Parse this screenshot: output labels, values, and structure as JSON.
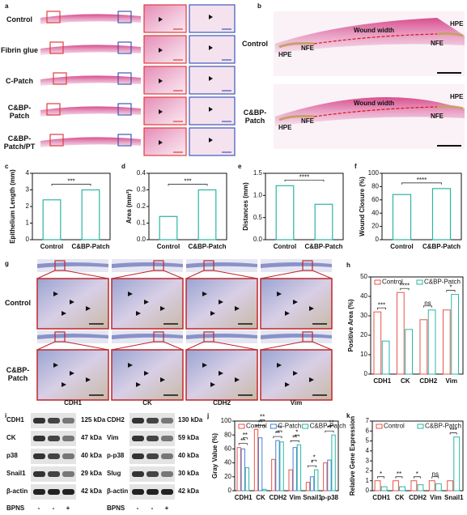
{
  "panels": {
    "a": {
      "label": "a",
      "rows": [
        "Control",
        "Fibrin glue",
        "C-Patch",
        "C&BP-Patch",
        "C&BP-Patch/PT"
      ]
    },
    "b": {
      "label": "b",
      "rows": [
        "Control",
        "C&BP-Patch"
      ],
      "annotations": [
        "HPE",
        "NFE",
        "Wound width"
      ]
    },
    "g": {
      "label": "g",
      "rows": [
        "Control",
        "C&BP-Patch"
      ],
      "columns": [
        "CDH1",
        "CK",
        "CDH2",
        "Vim"
      ]
    },
    "i": {
      "label": "i",
      "left": [
        {
          "protein": "CDH1",
          "size": "125 kDa"
        },
        {
          "protein": "CK",
          "size": "47 kDa"
        },
        {
          "protein": "p38",
          "size": "40 kDa"
        },
        {
          "protein": "Snail1",
          "size": "29 kDa"
        },
        {
          "protein": "β-actin",
          "size": "42 kDa"
        }
      ],
      "right": [
        {
          "protein": "CDH2",
          "size": "130 kDa"
        },
        {
          "protein": "Vim",
          "size": "59 kDa"
        },
        {
          "protein": "p-p38",
          "size": "40 kDa"
        },
        {
          "protein": "Slug",
          "size": "30 kDa"
        },
        {
          "protein": "β-actin",
          "size": "42 kDa"
        }
      ],
      "treatment_label": "BPNS",
      "treatment": [
        "-",
        "-",
        "+"
      ]
    }
  },
  "chart_data": [
    {
      "type": "bar",
      "panel_label": "c",
      "ylabel": "Epithelium Length (mm)",
      "categories": [
        "Control",
        "C&BP-Patch"
      ],
      "values": [
        2.4,
        3.0
      ],
      "color": "#2bb5a3",
      "ylim": [
        0,
        4
      ],
      "yticks": [
        0,
        1,
        2,
        3,
        4
      ],
      "significance": [
        "***"
      ]
    },
    {
      "type": "bar",
      "panel_label": "d",
      "ylabel": "Area (mm²)",
      "categories": [
        "Control",
        "C&BP-Patch"
      ],
      "values": [
        0.14,
        0.3
      ],
      "color": "#2bb5a3",
      "ylim": [
        0,
        0.4
      ],
      "yticks": [
        {
          "value": 0,
          "label": "0.0"
        },
        0.1,
        0.2,
        0.3,
        0.4
      ],
      "significance": [
        "***"
      ]
    },
    {
      "type": "bar",
      "panel_label": "e",
      "ylabel": "Distances (mm)",
      "categories": [
        "Control",
        "C&BP-Patch"
      ],
      "values": [
        1.22,
        0.8
      ],
      "color": "#2bb5a3",
      "ylim": [
        0,
        1.5
      ],
      "yticks": [
        {
          "value": 0,
          "label": "0.0"
        },
        0.5,
        {
          "value": 1,
          "label": "1.0"
        },
        1.5
      ],
      "significance": [
        "****"
      ]
    },
    {
      "type": "bar",
      "panel_label": "f",
      "ylabel": "Wound Closure (%)",
      "categories": [
        "Control",
        "C&BP-Patch"
      ],
      "values": [
        68,
        77
      ],
      "color": "#2bb5a3",
      "ylim": [
        0,
        100
      ],
      "yticks": [
        0,
        20,
        40,
        60,
        80,
        100
      ],
      "significance": [
        "****"
      ]
    },
    {
      "type": "bar",
      "panel_label": "h",
      "ylabel": "Positive Area (%)",
      "categories": [
        "CDH1",
        "CK",
        "CDH2",
        "Vim"
      ],
      "series": [
        {
          "name": "Control",
          "color": "#e8534a",
          "values": [
            32,
            42,
            28,
            33
          ]
        },
        {
          "name": "C&BP-Patch",
          "color": "#2bb5a3",
          "values": [
            17,
            23,
            33,
            41
          ]
        }
      ],
      "ylim": [
        0,
        50
      ],
      "yticks": [
        0,
        10,
        20,
        30,
        40,
        50
      ],
      "significance": [
        "***",
        "****",
        "ns",
        "*"
      ]
    },
    {
      "type": "bar",
      "panel_label": "j",
      "ylabel": "Gray Value (%)",
      "categories": [
        "CDH1",
        "CK",
        "CDH2",
        "Vim",
        "Snail1",
        "p-p38"
      ],
      "series": [
        {
          "name": "Control",
          "color": "#e8534a",
          "values": [
            62,
            88,
            45,
            30,
            12,
            40
          ]
        },
        {
          "name": "C-Patch",
          "color": "#4a7fd4",
          "values": [
            60,
            76,
            72,
            62,
            20,
            44
          ]
        },
        {
          "name": "C&BP-Patch",
          "color": "#2bb5a3",
          "values": [
            33,
            2,
            70,
            66,
            30,
            80
          ]
        }
      ],
      "ylim": [
        0,
        100
      ],
      "yticks": [
        0,
        20,
        40,
        60,
        80,
        100
      ],
      "significance": [
        [
          "**",
          "**"
        ],
        [
          "**",
          "**"
        ],
        [
          "**",
          "**"
        ],
        [
          "**",
          "*"
        ],
        [
          "*",
          "*"
        ],
        [
          "**",
          "**"
        ]
      ]
    },
    {
      "type": "bar",
      "panel_label": "k",
      "ylabel": "Relative Gene Expression",
      "categories": [
        "CDH1",
        "CK",
        "CDH2",
        "Vim",
        "Snail1"
      ],
      "series": [
        {
          "name": "Control",
          "color": "#e8534a",
          "values": [
            1,
            1,
            1,
            1,
            1
          ]
        },
        {
          "name": "C&BP-Patch",
          "color": "#2bb5a3",
          "values": [
            0.4,
            0.4,
            0.6,
            0.7,
            5.4
          ]
        }
      ],
      "ylim": [
        0,
        7
      ],
      "yticks": [
        0,
        1,
        2,
        3,
        4,
        5,
        6,
        7
      ],
      "significance": [
        "*",
        "**",
        "*",
        "ns",
        "***"
      ]
    }
  ]
}
